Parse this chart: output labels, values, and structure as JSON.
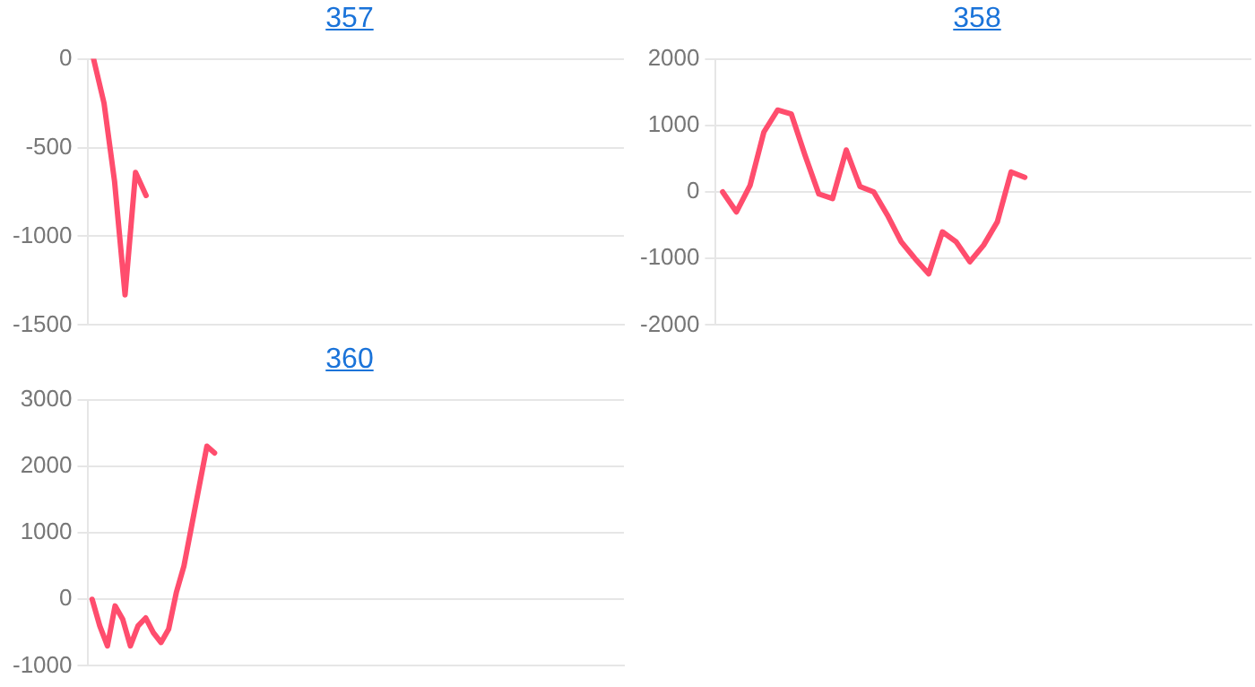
{
  "chart_data": [
    {
      "type": "line",
      "title": "357",
      "categories": [
        null,
        null,
        null,
        null,
        null,
        null,
        null,
        null,
        null,
        null,
        null,
        null,
        null,
        null,
        null,
        null,
        null,
        null,
        null,
        null,
        null,
        null,
        null,
        null,
        null,
        null,
        null,
        null,
        null,
        null,
        null,
        null,
        null,
        null,
        null,
        null,
        null,
        null,
        null,
        null,
        null,
        null,
        null,
        null,
        null,
        null,
        null,
        null,
        null,
        null,
        null
      ],
      "series": [
        {
          "color": "#ff4d6d",
          "values": [
            0,
            -250,
            -690,
            -1330,
            -640,
            -770,
            null,
            null,
            null,
            null,
            null,
            null,
            null,
            null,
            null,
            null,
            null,
            null,
            null,
            null,
            null,
            null,
            null,
            null,
            null,
            null,
            null,
            null,
            null,
            null,
            null,
            null,
            null,
            null,
            null,
            null,
            null,
            null,
            null,
            null,
            null,
            null,
            null,
            null,
            null,
            null,
            null,
            null,
            null,
            null,
            null
          ]
        }
      ],
      "ylim": [
        -1500,
        0
      ],
      "yticks": [
        -1500,
        -1000,
        -500,
        0
      ],
      "grid": "y",
      "legend": false,
      "marker": "none",
      "line_style": "solid",
      "tick_labels": "y"
    },
    {
      "type": "line",
      "title": "358",
      "categories": [
        null,
        null,
        null,
        null,
        null,
        null,
        null,
        null,
        null,
        null,
        null,
        null,
        null,
        null,
        null,
        null,
        null,
        null,
        null,
        null,
        null,
        null,
        null,
        null,
        null,
        null,
        null,
        null,
        null,
        null,
        null,
        null,
        null,
        null,
        null,
        null,
        null,
        null,
        null
      ],
      "series": [
        {
          "color": "#ff4d6d",
          "values": [
            0,
            -300,
            100,
            900,
            1230,
            1170,
            550,
            -30,
            -100,
            630,
            80,
            0,
            -350,
            -750,
            -1000,
            -1230,
            -600,
            -750,
            -1050,
            -800,
            -450,
            300,
            220,
            null,
            null,
            null,
            null,
            null,
            null,
            null,
            null,
            null,
            null,
            null,
            null,
            null,
            null,
            null,
            null
          ]
        }
      ],
      "ylim": [
        -2000,
        2000
      ],
      "yticks": [
        -2000,
        -1000,
        0,
        1000,
        2000
      ],
      "grid": "y",
      "legend": false,
      "marker": "none",
      "line_style": "solid",
      "tick_labels": "y"
    },
    {
      "type": "line",
      "title": "360",
      "categories": [
        null,
        null,
        null,
        null,
        null,
        null,
        null,
        null,
        null,
        null,
        null,
        null,
        null,
        null,
        null,
        null,
        null,
        null,
        null,
        null,
        null,
        null,
        null,
        null,
        null,
        null,
        null,
        null,
        null,
        null,
        null,
        null,
        null,
        null,
        null,
        null,
        null,
        null,
        null,
        null,
        null,
        null,
        null,
        null,
        null,
        null,
        null,
        null,
        null,
        null,
        null,
        null,
        null,
        null,
        null,
        null,
        null,
        null,
        null,
        null,
        null,
        null,
        null,
        null,
        null,
        null,
        null,
        null,
        null,
        null
      ],
      "series": [
        {
          "color": "#ff4d6d",
          "values": [
            0,
            -400,
            -700,
            -100,
            -300,
            -700,
            -400,
            -280,
            -500,
            -650,
            -450,
            100,
            500,
            1100,
            1700,
            2300,
            2200,
            null,
            null,
            null,
            null,
            null,
            null,
            null,
            null,
            null,
            null,
            null,
            null,
            null,
            null,
            null,
            null,
            null,
            null,
            null,
            null,
            null,
            null,
            null,
            null,
            null,
            null,
            null,
            null,
            null,
            null,
            null,
            null,
            null,
            null,
            null,
            null,
            null,
            null,
            null,
            null,
            null,
            null,
            null,
            null,
            null,
            null,
            null,
            null,
            null,
            null,
            null,
            null,
            null
          ]
        }
      ],
      "ylim": [
        -1000,
        3000
      ],
      "yticks": [
        -1000,
        0,
        1000,
        2000,
        3000
      ],
      "grid": "y",
      "legend": false,
      "marker": "none",
      "line_style": "solid",
      "tick_labels": "y"
    }
  ]
}
